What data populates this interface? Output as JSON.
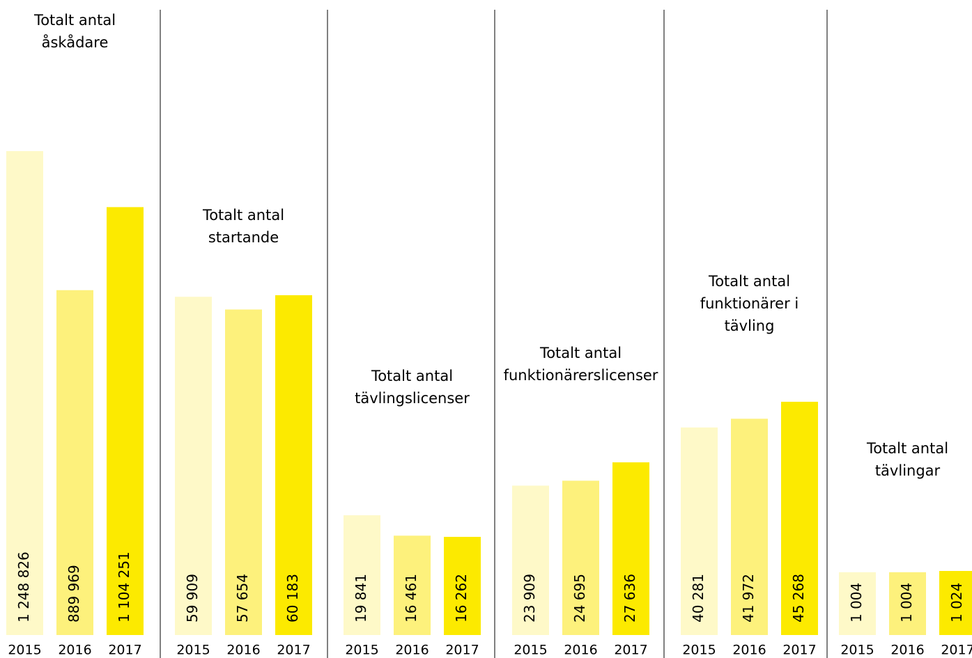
{
  "chart_data": [
    {
      "type": "bar",
      "title": [
        "Totalt antal",
        "åskådare"
      ],
      "categories": [
        "2015",
        "2016",
        "2017"
      ],
      "values": [
        1248826,
        889969,
        1104251
      ],
      "value_labels": [
        "1 248 826",
        "889 969",
        "1 104 251"
      ],
      "colors": [
        "#fef9c8",
        "#fdf17c",
        "#fcea00"
      ]
    },
    {
      "type": "bar",
      "title": [
        "Totalt antal",
        "startande"
      ],
      "categories": [
        "2015",
        "2016",
        "2017"
      ],
      "values": [
        59909,
        57654,
        60183
      ],
      "value_labels": [
        "59 909",
        "57 654",
        "60 183"
      ],
      "colors": [
        "#fef9c8",
        "#fdf17c",
        "#fcea00"
      ]
    },
    {
      "type": "bar",
      "title": [
        "Totalt antal",
        "tävlingslicenser"
      ],
      "categories": [
        "2015",
        "2016",
        "2017"
      ],
      "values": [
        19841,
        16461,
        16262
      ],
      "value_labels": [
        "19 841",
        "16 461",
        "16 262"
      ],
      "colors": [
        "#fef9c8",
        "#fdf17c",
        "#fcea00"
      ]
    },
    {
      "type": "bar",
      "title": [
        "Totalt antal",
        "funktionärerslicenser"
      ],
      "categories": [
        "2015",
        "2016",
        "2017"
      ],
      "values": [
        23909,
        24695,
        27636
      ],
      "value_labels": [
        "23 909",
        "24 695",
        "27 636"
      ],
      "colors": [
        "#fef9c8",
        "#fdf17c",
        "#fcea00"
      ]
    },
    {
      "type": "bar",
      "title": [
        "Totalt antal",
        "funktionärer i",
        "tävling"
      ],
      "categories": [
        "2015",
        "2016",
        "2017"
      ],
      "values": [
        40281,
        41972,
        45268
      ],
      "value_labels": [
        "40 281",
        "41 972",
        "45 268"
      ],
      "colors": [
        "#fef9c8",
        "#fdf17c",
        "#fcea00"
      ]
    },
    {
      "type": "bar",
      "title": [
        "Totalt antal",
        "tävlingar"
      ],
      "categories": [
        "2015",
        "2016",
        "2017"
      ],
      "values": [
        1004,
        1004,
        1024
      ],
      "value_labels": [
        "1 004",
        "1 004",
        "1 024"
      ],
      "colors": [
        "#fef9c8",
        "#fdf17c",
        "#fcea00"
      ]
    }
  ]
}
